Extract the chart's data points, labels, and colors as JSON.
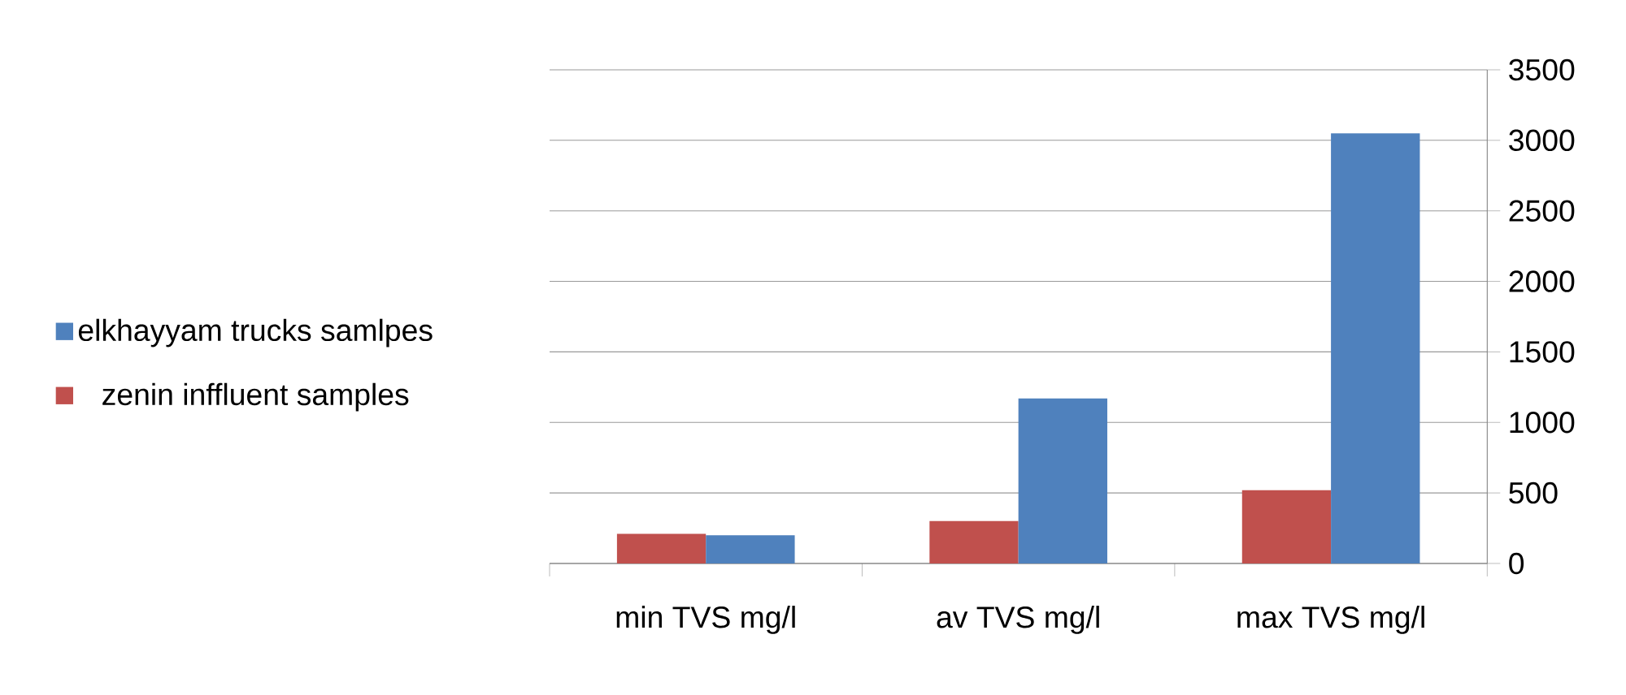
{
  "chart_data": {
    "type": "bar",
    "categories": [
      "min TVS mg/l",
      "av TVS mg/l",
      "max TVS mg/l"
    ],
    "series": [
      {
        "name": "zenin inffluent samples",
        "color": "#c0504d",
        "values": [
          210,
          300,
          520
        ]
      },
      {
        "name": "elkhayyam trucks samlpes",
        "color": "#4f81bd",
        "values": [
          200,
          1170,
          3050
        ]
      }
    ],
    "ylim": [
      0,
      3500
    ],
    "yticks": [
      0,
      500,
      1000,
      1500,
      2000,
      2500,
      3000,
      3500
    ],
    "grid": "y",
    "legend": "left"
  }
}
